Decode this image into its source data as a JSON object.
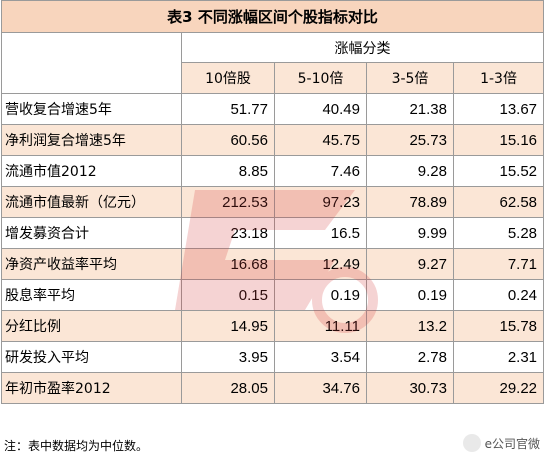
{
  "title": "表3 不同涨幅区间个股指标对比",
  "group_header": "涨幅分类",
  "columns": [
    "10倍股",
    "5-10倍",
    "3-5倍",
    "1-3倍"
  ],
  "rows": [
    {
      "label": "营收复合增速5年",
      "values": [
        "51.77",
        "40.49",
        "21.38",
        "13.67"
      ]
    },
    {
      "label": "净利润复合增速5年",
      "values": [
        "60.56",
        "45.75",
        "25.73",
        "15.16"
      ]
    },
    {
      "label": "流通市值2012",
      "values": [
        "8.85",
        "7.46",
        "9.28",
        "15.52"
      ]
    },
    {
      "label": "流通市值最新（亿元）",
      "values": [
        "212.53",
        "97.23",
        "78.89",
        "62.58"
      ]
    },
    {
      "label": "增发募资合计",
      "values": [
        "23.18",
        "16.5",
        "9.99",
        "5.28"
      ]
    },
    {
      "label": "净资产收益率平均",
      "values": [
        "16.68",
        "12.49",
        "9.27",
        "7.71"
      ]
    },
    {
      "label": "股息率平均",
      "values": [
        "0.15",
        "0.19",
        "0.19",
        "0.24"
      ]
    },
    {
      "label": "分红比例",
      "values": [
        "14.95",
        "11.11",
        "13.2",
        "15.78"
      ]
    },
    {
      "label": "研发投入平均",
      "values": [
        "3.95",
        "3.54",
        "2.78",
        "2.31"
      ]
    },
    {
      "label": "年初市盈率2012",
      "values": [
        "28.05",
        "34.76",
        "30.73",
        "29.22"
      ]
    }
  ],
  "footnote": "注：表中数据均为中位数。",
  "brand": "e公司官微",
  "colors": {
    "title_bg": "#f8d5bd",
    "band": "#fbe6d6",
    "watermark": "#d33b3b"
  }
}
